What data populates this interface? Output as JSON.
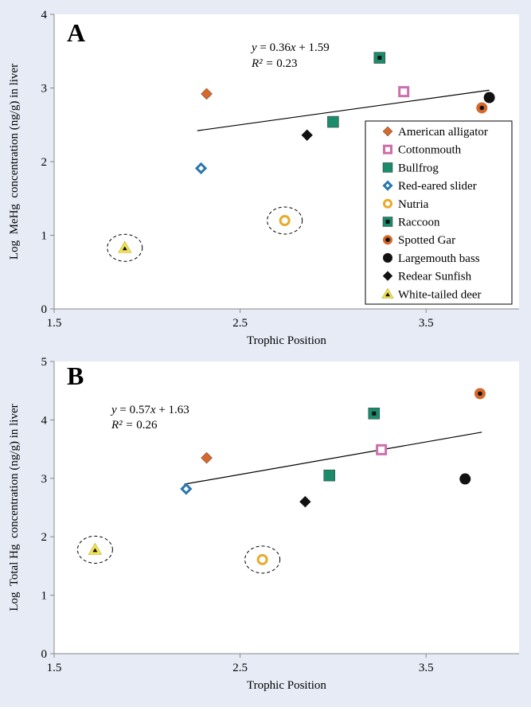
{
  "chart_data": [
    {
      "type": "scatter",
      "panel_label": "A",
      "xlabel": "Trophic Position",
      "ylabel": "Log  MeHg  concentration (ng/g) in liver",
      "xlim": [
        1.5,
        4.0
      ],
      "ylim": [
        0,
        4
      ],
      "xticks": [
        1.5,
        2.5,
        3.5
      ],
      "xtick_labels": [
        "1.5",
        "2.5",
        "3.5"
      ],
      "yticks": [
        0,
        1,
        2,
        3,
        4
      ],
      "ytick_labels": [
        "0",
        "1",
        "2",
        "3",
        "4"
      ],
      "grid": false,
      "legend_position": "bottom-right",
      "equation": {
        "lhs": "y",
        "rhs_coef": " = 0.36",
        "rhs_var": "x",
        "rhs_tail": " + 1.59"
      },
      "r2": {
        "lhs": "R² =",
        "value": " 0.23"
      },
      "trendline": {
        "x": [
          2.27,
          3.84
        ],
        "y": [
          2.42,
          2.97
        ]
      },
      "points": [
        {
          "series": "American alligator",
          "x": 2.32,
          "y": 2.92
        },
        {
          "series": "Cottonmouth",
          "x": 3.38,
          "y": 2.95
        },
        {
          "series": "Bullfrog",
          "x": 3.0,
          "y": 2.54
        },
        {
          "series": "Red-eared slider",
          "x": 2.29,
          "y": 1.91
        },
        {
          "series": "Nutria",
          "x": 2.74,
          "y": 1.2,
          "circled": true
        },
        {
          "series": "Raccoon",
          "x": 3.25,
          "y": 3.41
        },
        {
          "series": "Spotted Gar",
          "x": 3.8,
          "y": 2.73
        },
        {
          "series": "Largemouth bass",
          "x": 3.84,
          "y": 2.87
        },
        {
          "series": "Redear Sunfish",
          "x": 2.86,
          "y": 2.36
        },
        {
          "series": "White-tailed deer",
          "x": 1.88,
          "y": 0.83,
          "circled": true
        }
      ]
    },
    {
      "type": "scatter",
      "panel_label": "B",
      "xlabel": "Trophic Position",
      "ylabel": "Log  Total Hg  concentration (ng/g) in liver",
      "xlim": [
        1.5,
        4.0
      ],
      "ylim": [
        0,
        5
      ],
      "xticks": [
        1.5,
        2.5,
        3.5
      ],
      "xtick_labels": [
        "1.5",
        "2.5",
        "3.5"
      ],
      "yticks": [
        0,
        1,
        2,
        3,
        4,
        5
      ],
      "ytick_labels": [
        "0",
        "1",
        "2",
        "3",
        "4",
        "5"
      ],
      "grid": false,
      "legend_position": "none",
      "equation": {
        "lhs": "y",
        "rhs_coef": " = 0.57",
        "rhs_var": "x",
        "rhs_tail": " + 1.63"
      },
      "r2": {
        "lhs": "R² =",
        "value": " 0.26"
      },
      "trendline": {
        "x": [
          2.2,
          3.8
        ],
        "y": [
          2.9,
          3.79
        ]
      },
      "points": [
        {
          "series": "American alligator",
          "x": 2.32,
          "y": 3.35
        },
        {
          "series": "Cottonmouth",
          "x": 3.26,
          "y": 3.49
        },
        {
          "series": "Bullfrog",
          "x": 2.98,
          "y": 3.05
        },
        {
          "series": "Red-eared slider",
          "x": 2.21,
          "y": 2.82
        },
        {
          "series": "Nutria",
          "x": 2.62,
          "y": 1.61,
          "circled": true
        },
        {
          "series": "Raccoon",
          "x": 3.22,
          "y": 4.11
        },
        {
          "series": "Spotted Gar",
          "x": 3.79,
          "y": 4.45
        },
        {
          "series": "Largemouth bass",
          "x": 3.71,
          "y": 2.99
        },
        {
          "series": "Redear Sunfish",
          "x": 2.85,
          "y": 2.6
        },
        {
          "series": "White-tailed deer",
          "x": 1.72,
          "y": 1.78,
          "circled": true
        }
      ]
    }
  ],
  "series": [
    {
      "name": "American alligator",
      "marker": "diamond",
      "color": "#d5682b",
      "inner": null
    },
    {
      "name": "Cottonmouth",
      "marker": "square-open",
      "color": "#cc6fad",
      "inner": null
    },
    {
      "name": "Bullfrog",
      "marker": "square",
      "color": "#1a8c6a",
      "inner": null
    },
    {
      "name": "Red-eared slider",
      "marker": "diamond-open",
      "color": "#2a77b0",
      "inner": null
    },
    {
      "name": "Nutria",
      "marker": "circle-open",
      "color": "#e8aa2a",
      "inner": null
    },
    {
      "name": "Raccoon",
      "marker": "square",
      "color": "#1a8c6a",
      "inner": "#111111"
    },
    {
      "name": "Spotted Gar",
      "marker": "circle",
      "color": "#d5682b",
      "inner": "#111111"
    },
    {
      "name": "Largemouth bass",
      "marker": "circle",
      "color": "#111111",
      "inner": null
    },
    {
      "name": "Redear Sunfish",
      "marker": "diamond",
      "color": "#111111",
      "inner": null
    },
    {
      "name": "White-tailed deer",
      "marker": "triangle",
      "color": "#f2e35a",
      "inner": "#111111"
    }
  ]
}
